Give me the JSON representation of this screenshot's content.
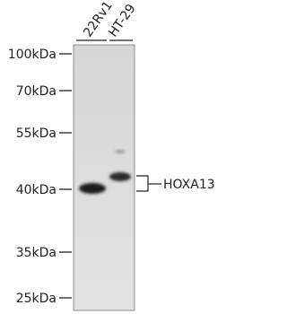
{
  "lanes": [
    "22Rv1",
    "HT-29"
  ],
  "markers": [
    "100kDa",
    "70kDa",
    "55kDa",
    "40kDa",
    "35kDa",
    "25kDa"
  ],
  "band_label": "HOXA13"
}
